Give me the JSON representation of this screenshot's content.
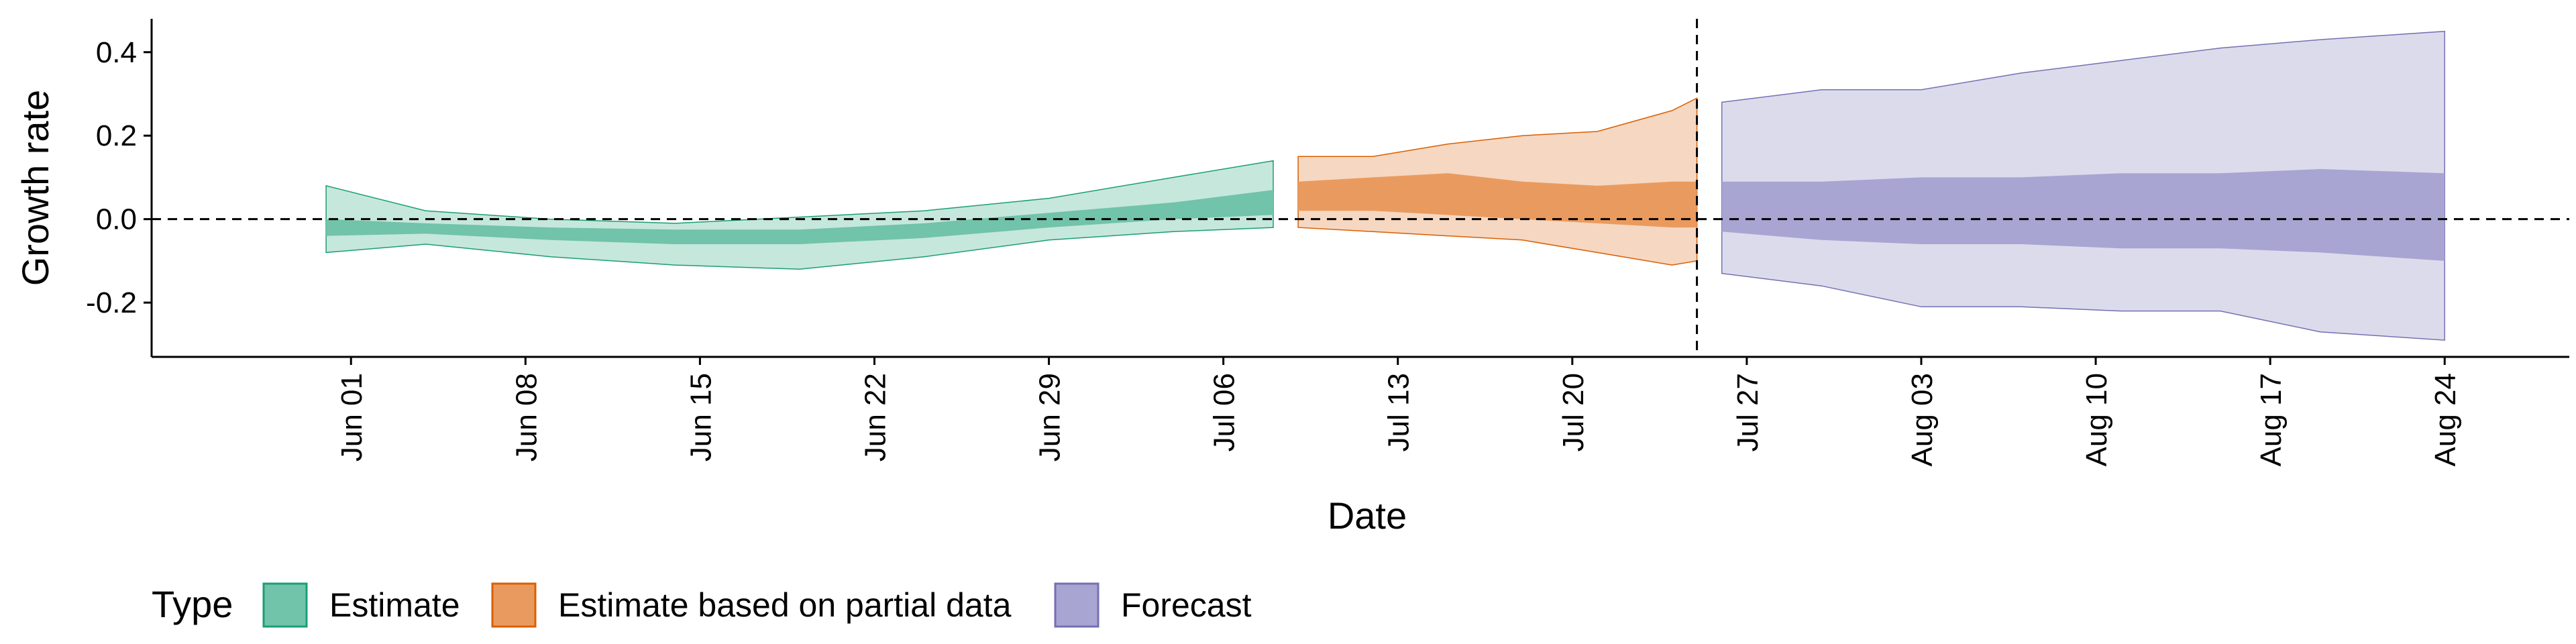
{
  "chart_data": {
    "type": "area",
    "title": "",
    "xlabel": "Date",
    "ylabel": "Growth rate",
    "ylim": [
      -0.33,
      0.48
    ],
    "xlim": [
      "2021-05-24",
      "2021-08-29"
    ],
    "x_ticks": [
      "2021-06-01",
      "2021-06-08",
      "2021-06-15",
      "2021-06-22",
      "2021-06-29",
      "2021-07-06",
      "2021-07-13",
      "2021-07-20",
      "2021-07-27",
      "2021-08-03",
      "2021-08-10",
      "2021-08-17",
      "2021-08-24"
    ],
    "x_tick_labels": [
      "Jun 01",
      "Jun 08",
      "Jun 15",
      "Jun 22",
      "Jun 29",
      "Jul 06",
      "Jul 13",
      "Jul 20",
      "Jul 27",
      "Aug 03",
      "Aug 10",
      "Aug 17",
      "Aug 24"
    ],
    "y_ticks": [
      -0.2,
      0.0,
      0.2,
      0.4
    ],
    "y_tick_labels": [
      "-0.2",
      "0.0",
      "0.2",
      "0.4"
    ],
    "reference_hline": 0,
    "reference_vline": "2021-07-25",
    "grid": false,
    "legend": {
      "title": "Type",
      "placement": "bottom-left",
      "entries": [
        "Estimate",
        "Estimate based on partial data",
        "Forecast"
      ]
    },
    "series": [
      {
        "name": "Estimate",
        "color": "#1b9e77",
        "fill_inner": "#71c3a9",
        "fill_outer": "#c6e7dc",
        "x": [
          "2021-05-31",
          "2021-06-04",
          "2021-06-09",
          "2021-06-14",
          "2021-06-19",
          "2021-06-24",
          "2021-06-29",
          "2021-07-04",
          "2021-07-08"
        ],
        "lower_90": [
          -0.08,
          -0.06,
          -0.09,
          -0.11,
          -0.12,
          -0.09,
          -0.05,
          -0.03,
          -0.02
        ],
        "lower_50": [
          -0.04,
          -0.035,
          -0.05,
          -0.06,
          -0.06,
          -0.045,
          -0.02,
          0.0,
          0.01
        ],
        "upper_50": [
          0.0,
          -0.01,
          -0.02,
          -0.025,
          -0.025,
          -0.01,
          0.015,
          0.04,
          0.07
        ],
        "upper_90": [
          0.08,
          0.02,
          0.0,
          -0.01,
          0.005,
          0.02,
          0.05,
          0.1,
          0.14
        ]
      },
      {
        "name": "Estimate based on partial data",
        "color": "#d95f02",
        "fill_inner": "#e99b5f",
        "fill_outer": "#f6d7c1",
        "x": [
          "2021-07-09",
          "2021-07-12",
          "2021-07-15",
          "2021-07-18",
          "2021-07-21",
          "2021-07-24",
          "2021-07-25"
        ],
        "lower_90": [
          -0.02,
          -0.03,
          -0.04,
          -0.05,
          -0.08,
          -0.11,
          -0.1
        ],
        "lower_50": [
          0.02,
          0.02,
          0.01,
          0.0,
          -0.01,
          -0.02,
          -0.02
        ],
        "upper_50": [
          0.09,
          0.1,
          0.11,
          0.09,
          0.08,
          0.09,
          0.09
        ],
        "upper_90": [
          0.15,
          0.15,
          0.18,
          0.2,
          0.21,
          0.26,
          0.29
        ]
      },
      {
        "name": "Forecast",
        "color": "#7570b3",
        "fill_inner": "#a8a5d2",
        "fill_outer": "#dcdbec",
        "x": [
          "2021-07-26",
          "2021-07-30",
          "2021-08-03",
          "2021-08-07",
          "2021-08-11",
          "2021-08-15",
          "2021-08-19",
          "2021-08-24"
        ],
        "lower_90": [
          -0.13,
          -0.16,
          -0.21,
          -0.21,
          -0.22,
          -0.22,
          -0.27,
          -0.29
        ],
        "lower_50": [
          -0.03,
          -0.05,
          -0.06,
          -0.06,
          -0.07,
          -0.07,
          -0.08,
          -0.1
        ],
        "upper_50": [
          0.09,
          0.09,
          0.1,
          0.1,
          0.11,
          0.11,
          0.12,
          0.11
        ],
        "upper_90": [
          0.28,
          0.31,
          0.31,
          0.35,
          0.38,
          0.41,
          0.43,
          0.45
        ]
      }
    ]
  }
}
